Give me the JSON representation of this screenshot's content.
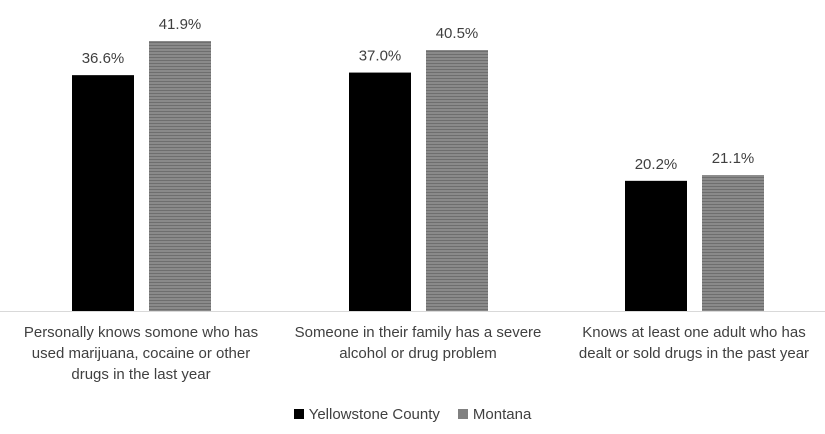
{
  "chart_data": {
    "type": "bar",
    "title": "",
    "xlabel": "",
    "ylabel": "",
    "ylim": [
      0,
      45
    ],
    "grid": false,
    "legend_position": "bottom",
    "categories": [
      [
        "Personally knows somone who has",
        "used marijuana, cocaine or other",
        "drugs in the last year"
      ],
      [
        "Someone in their family has a severe",
        "alcohol or drug problem"
      ],
      [
        "Knows at least one adult who has",
        "dealt or sold drugs in the past year"
      ]
    ],
    "series": [
      {
        "name": "Yellowstone County",
        "color": "#000000",
        "values": [
          36.6,
          37.0,
          20.2
        ],
        "labels": [
          "36.6%",
          "37.0%",
          "20.2%"
        ]
      },
      {
        "name": "Montana",
        "color": "#808080",
        "values": [
          41.9,
          40.5,
          21.1
        ],
        "labels": [
          "41.9%",
          "40.5%",
          "21.1%"
        ]
      }
    ]
  }
}
